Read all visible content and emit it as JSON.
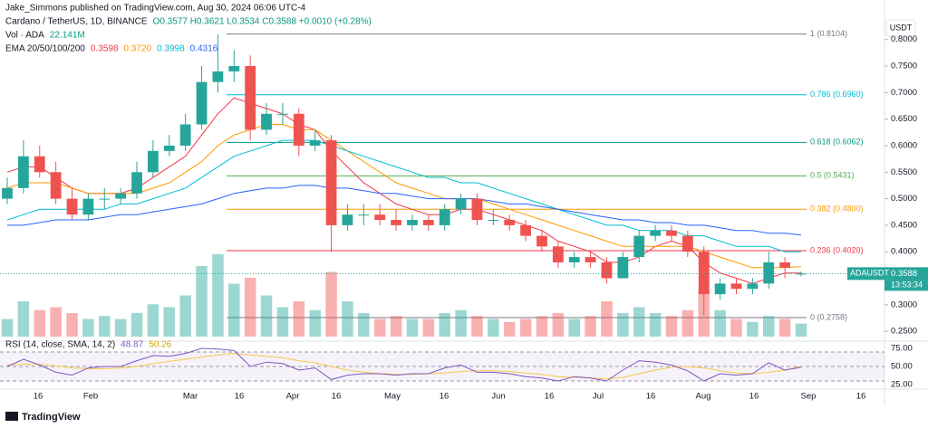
{
  "header": {
    "author_line": "Jake_Simmons published on TradingView.com, Aug 30, 2024 06:06 UTC-4",
    "footer": "TradingView",
    "currency": "USDT"
  },
  "chart_data": {
    "type": "candlestick",
    "title": "Cardano / TetherUS, 1D, BINANCE",
    "ohlc_text": "O0.3577 H0.3621 L0.3534 C0.3588 +0.0010 (+0.28%)",
    "x_labels": [
      "16",
      "Feb",
      "Mar",
      "16",
      "Apr",
      "16",
      "May",
      "16",
      "Jun",
      "16",
      "Jul",
      "16",
      "Aug",
      "16",
      "Sep",
      "16"
    ],
    "open": [
      0.5,
      0.52,
      0.58,
      0.55,
      0.5,
      0.47,
      0.5,
      0.5,
      0.51,
      0.55,
      0.59,
      0.6,
      0.64,
      0.72,
      0.74,
      0.75,
      0.63,
      0.66,
      0.66,
      0.6,
      0.61,
      0.45,
      0.47,
      0.47,
      0.46,
      0.45,
      0.46,
      0.45,
      0.48,
      0.5,
      0.46,
      0.46,
      0.45,
      0.43,
      0.41,
      0.38,
      0.39,
      0.38,
      0.35,
      0.39,
      0.43,
      0.44,
      0.43,
      0.4,
      0.32,
      0.34,
      0.33,
      0.34,
      0.38,
      0.3577
    ],
    "high": [
      0.54,
      0.61,
      0.6,
      0.57,
      0.52,
      0.51,
      0.52,
      0.52,
      0.57,
      0.61,
      0.62,
      0.66,
      0.75,
      0.81,
      0.78,
      0.77,
      0.68,
      0.68,
      0.67,
      0.63,
      0.62,
      0.49,
      0.49,
      0.49,
      0.48,
      0.47,
      0.47,
      0.49,
      0.51,
      0.51,
      0.48,
      0.47,
      0.46,
      0.44,
      0.42,
      0.4,
      0.4,
      0.39,
      0.4,
      0.44,
      0.45,
      0.45,
      0.44,
      0.41,
      0.35,
      0.35,
      0.35,
      0.4,
      0.39,
      0.3621
    ],
    "low": [
      0.49,
      0.51,
      0.54,
      0.49,
      0.46,
      0.46,
      0.48,
      0.49,
      0.5,
      0.54,
      0.58,
      0.59,
      0.63,
      0.7,
      0.72,
      0.61,
      0.62,
      0.64,
      0.58,
      0.59,
      0.4,
      0.44,
      0.45,
      0.45,
      0.44,
      0.44,
      0.44,
      0.44,
      0.47,
      0.45,
      0.45,
      0.44,
      0.42,
      0.4,
      0.37,
      0.37,
      0.37,
      0.34,
      0.35,
      0.38,
      0.42,
      0.42,
      0.39,
      0.28,
      0.31,
      0.32,
      0.32,
      0.33,
      0.35,
      0.3534
    ],
    "close": [
      0.52,
      0.58,
      0.55,
      0.5,
      0.47,
      0.5,
      0.5,
      0.51,
      0.55,
      0.59,
      0.6,
      0.64,
      0.72,
      0.74,
      0.75,
      0.63,
      0.66,
      0.66,
      0.6,
      0.61,
      0.45,
      0.47,
      0.47,
      0.46,
      0.45,
      0.46,
      0.45,
      0.48,
      0.5,
      0.46,
      0.46,
      0.45,
      0.43,
      0.41,
      0.38,
      0.39,
      0.38,
      0.35,
      0.39,
      0.43,
      0.44,
      0.43,
      0.4,
      0.32,
      0.34,
      0.33,
      0.34,
      0.38,
      0.37,
      0.3588
    ],
    "up_color": "#26a69a",
    "down_color": "#ef5350",
    "ylim": [
      0.24,
      0.82
    ],
    "yticks": [
      {
        "value": 0.25,
        "label": "0.2500"
      },
      {
        "value": 0.3,
        "label": "0.3000"
      },
      {
        "value": 0.35,
        "label": "0.3500"
      },
      {
        "value": 0.4,
        "label": "0.4000"
      },
      {
        "value": 0.45,
        "label": "0.4500"
      },
      {
        "value": 0.5,
        "label": "0.5000"
      },
      {
        "value": 0.55,
        "label": "0.5500"
      },
      {
        "value": 0.6,
        "label": "0.6000"
      },
      {
        "value": 0.65,
        "label": "0.6500"
      },
      {
        "value": 0.7,
        "label": "0.7000"
      },
      {
        "value": 0.75,
        "label": "0.7500"
      },
      {
        "value": 0.8,
        "label": "0.8000"
      }
    ],
    "last_price": {
      "value": 0.3588,
      "symbol": "ADAUSDT",
      "label": "0.3588",
      "countdown": "13:53:34",
      "color": "#26a69a"
    },
    "volume": {
      "label": "Vol · ADA",
      "value_label": "22.141M",
      "values": [
        30,
        60,
        45,
        50,
        40,
        30,
        35,
        30,
        40,
        55,
        50,
        70,
        120,
        140,
        90,
        100,
        70,
        50,
        60,
        45,
        110,
        60,
        40,
        30,
        35,
        30,
        30,
        40,
        45,
        35,
        30,
        25,
        30,
        35,
        40,
        30,
        35,
        60,
        40,
        50,
        40,
        35,
        45,
        80,
        45,
        30,
        25,
        35,
        30,
        22.141
      ]
    },
    "ema_label": "EMA 20/50/100/200",
    "ema_series": [
      {
        "color": "#f23645",
        "value_label": "0.3598",
        "values": [
          0.55,
          0.56,
          0.56,
          0.54,
          0.52,
          0.51,
          0.51,
          0.51,
          0.52,
          0.54,
          0.56,
          0.58,
          0.62,
          0.66,
          0.69,
          0.68,
          0.67,
          0.66,
          0.64,
          0.63,
          0.59,
          0.56,
          0.53,
          0.51,
          0.49,
          0.48,
          0.47,
          0.47,
          0.48,
          0.48,
          0.47,
          0.46,
          0.45,
          0.44,
          0.42,
          0.41,
          0.4,
          0.38,
          0.38,
          0.39,
          0.41,
          0.42,
          0.41,
          0.38,
          0.36,
          0.35,
          0.34,
          0.35,
          0.36,
          0.3598
        ]
      },
      {
        "color": "#ff9800",
        "value_label": "0.3720",
        "values": [
          0.52,
          0.53,
          0.53,
          0.53,
          0.52,
          0.51,
          0.51,
          0.51,
          0.51,
          0.52,
          0.53,
          0.55,
          0.57,
          0.6,
          0.62,
          0.63,
          0.64,
          0.64,
          0.63,
          0.63,
          0.61,
          0.59,
          0.57,
          0.55,
          0.53,
          0.52,
          0.51,
          0.5,
          0.5,
          0.5,
          0.49,
          0.48,
          0.47,
          0.46,
          0.45,
          0.44,
          0.43,
          0.42,
          0.41,
          0.41,
          0.41,
          0.41,
          0.41,
          0.4,
          0.39,
          0.38,
          0.37,
          0.37,
          0.37,
          0.372
        ]
      },
      {
        "color": "#00bcd4",
        "value_label": "0.3998",
        "values": [
          0.46,
          0.47,
          0.48,
          0.48,
          0.48,
          0.48,
          0.48,
          0.49,
          0.49,
          0.5,
          0.51,
          0.52,
          0.54,
          0.56,
          0.58,
          0.59,
          0.6,
          0.61,
          0.61,
          0.61,
          0.6,
          0.59,
          0.58,
          0.57,
          0.56,
          0.55,
          0.54,
          0.54,
          0.53,
          0.53,
          0.52,
          0.51,
          0.5,
          0.49,
          0.48,
          0.47,
          0.46,
          0.45,
          0.45,
          0.44,
          0.44,
          0.44,
          0.43,
          0.43,
          0.42,
          0.41,
          0.41,
          0.41,
          0.4,
          0.3998
        ]
      },
      {
        "color": "#2962ff",
        "value_label": "0.4316",
        "values": [
          0.45,
          0.45,
          0.455,
          0.46,
          0.46,
          0.46,
          0.465,
          0.47,
          0.47,
          0.475,
          0.48,
          0.485,
          0.49,
          0.5,
          0.51,
          0.515,
          0.52,
          0.52,
          0.525,
          0.525,
          0.52,
          0.52,
          0.515,
          0.51,
          0.51,
          0.505,
          0.5,
          0.5,
          0.5,
          0.5,
          0.495,
          0.49,
          0.49,
          0.485,
          0.48,
          0.475,
          0.47,
          0.465,
          0.46,
          0.46,
          0.455,
          0.455,
          0.45,
          0.45,
          0.445,
          0.44,
          0.44,
          0.435,
          0.435,
          0.4316
        ]
      }
    ],
    "fib_levels": [
      {
        "label": "1 (0.8104)",
        "value": 0.8104,
        "color": "#787b86"
      },
      {
        "label": "0.786 (0.6960)",
        "value": 0.696,
        "color": "#00bcd4"
      },
      {
        "label": "0.618 (0.6062)",
        "value": 0.6062,
        "color": "#089981"
      },
      {
        "label": "0.5 (0.5431)",
        "value": 0.5431,
        "color": "#4caf50"
      },
      {
        "label": "0.382 (0.4800)",
        "value": 0.48,
        "color": "#ff9800"
      },
      {
        "label": "0.236 (0.4020)",
        "value": 0.402,
        "color": "#f23645"
      },
      {
        "label": "0 (0.2758)",
        "value": 0.2758,
        "color": "#787b86"
      }
    ],
    "rsi": {
      "label": "RSI (14, close, SMA, 14, 2)",
      "value_label": "48.87",
      "ma_label": "50.26",
      "color": "#7e57c2",
      "ma_color": "#f7c948",
      "ylim": [
        20,
        80
      ],
      "yticks": [
        {
          "value": 25,
          "label": "25.00"
        },
        {
          "value": 50,
          "label": "50.00"
        },
        {
          "value": 75,
          "label": "75.00"
        }
      ],
      "band_lines": [
        70,
        50,
        30
      ],
      "values": [
        50,
        60,
        52,
        42,
        38,
        48,
        50,
        50,
        58,
        65,
        64,
        68,
        75,
        74,
        72,
        50,
        56,
        54,
        45,
        48,
        32,
        38,
        40,
        40,
        38,
        40,
        40,
        48,
        52,
        42,
        42,
        40,
        36,
        34,
        30,
        36,
        34,
        30,
        45,
        58,
        56,
        52,
        44,
        30,
        40,
        38,
        40,
        55,
        45,
        48.87
      ],
      "ma": [
        52,
        53,
        53,
        51,
        48,
        47,
        47,
        48,
        50,
        54,
        57,
        60,
        63,
        66,
        68,
        66,
        64,
        62,
        58,
        55,
        50,
        45,
        42,
        40,
        39,
        39,
        40,
        41,
        43,
        44,
        44,
        43,
        41,
        39,
        36,
        35,
        34,
        33,
        35,
        40,
        45,
        49,
        50,
        48,
        44,
        41,
        40,
        42,
        45,
        50.26
      ]
    }
  }
}
